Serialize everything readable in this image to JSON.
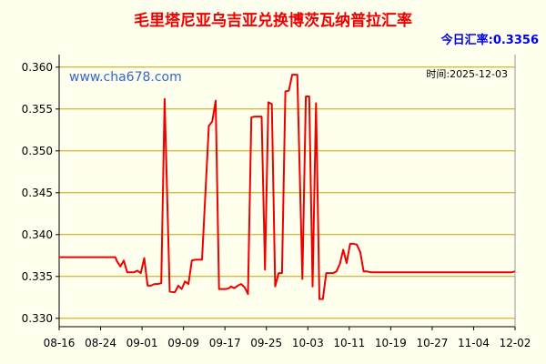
{
  "chart_data": {
    "type": "line",
    "title": "毛里塔尼亚乌吉亚兑换博茨瓦纳普拉汇率",
    "subtitle": "今日汇率:0.3356",
    "watermark": "www.cha678.com",
    "date_label": "时间:2025-12-03",
    "ylim": [
      0.329,
      0.3615
    ],
    "yticks": [
      "0.330",
      "0.335",
      "0.340",
      "0.345",
      "0.350",
      "0.355",
      "0.360"
    ],
    "xticks": [
      "08-16",
      "08-24",
      "09-01",
      "09-09",
      "09-17",
      "09-25",
      "10-03",
      "10-11",
      "10-19",
      "10-27",
      "11-04",
      "12-02"
    ],
    "series": [
      {
        "name": "",
        "color": "#EE0000",
        "x": [
          0,
          12,
          22,
          29,
          33,
          34,
          36,
          38,
          40,
          44,
          46,
          48,
          50,
          52,
          54,
          56,
          58,
          60,
          62,
          65,
          68,
          70,
          72,
          74,
          76,
          78,
          80,
          84,
          88,
          90,
          92,
          94,
          96,
          98,
          100,
          101,
          103,
          105,
          107,
          109,
          111,
          113,
          115,
          117,
          119,
          121,
          123,
          125,
          127,
          129,
          131,
          133,
          135,
          137,
          140,
          143,
          145,
          147,
          149,
          151,
          153,
          155,
          157,
          159,
          161,
          163,
          165,
          167,
          169,
          171,
          173,
          175,
          177,
          179,
          181,
          183,
          185,
          187,
          189,
          191,
          193,
          195,
          198,
          201,
          204,
          206,
          208,
          210,
          212,
          214,
          216,
          218,
          220,
          222,
          224,
          226,
          228,
          230,
          232,
          234,
          236,
          238,
          240,
          242,
          244,
          246,
          248,
          251,
          254,
          256,
          258,
          260,
          262,
          264,
          266,
          268
        ],
        "y": [
          0.3373,
          0.3373,
          0.3373,
          0.3373,
          0.3373,
          0.3368,
          0.3362,
          0.3369,
          0.3355,
          0.3355,
          0.3357,
          0.3354,
          0.3372,
          0.3339,
          0.3339,
          0.3341,
          0.3341,
          0.3342,
          0.3562,
          0.3332,
          0.3331,
          0.3339,
          0.3335,
          0.3344,
          0.3341,
          0.3369,
          0.337,
          0.337,
          0.353,
          0.3535,
          0.356,
          0.3335,
          0.3335,
          0.3335,
          0.3336,
          0.3338,
          0.3336,
          0.3339,
          0.3341,
          0.3337,
          0.3329,
          0.354,
          0.3541,
          0.3541,
          0.3541,
          0.3358,
          0.3558,
          0.3556,
          0.3338,
          0.3354,
          0.3354,
          0.3571,
          0.3572,
          0.3591,
          0.3591,
          0.3347,
          0.3565,
          0.3565,
          0.3338,
          0.3557,
          0.3323,
          0.3323,
          0.3354,
          0.3354,
          0.3354,
          0.3356,
          0.3365,
          0.3382,
          0.3366,
          0.3389,
          0.3389,
          0.3388,
          0.3379,
          0.3356,
          0.3356,
          0.3355,
          0.3355,
          0.3355,
          0.3355,
          0.3355,
          0.3355,
          0.3355,
          0.3355,
          0.3355,
          0.3355,
          0.3355,
          0.3355,
          0.3355,
          0.3355,
          0.3355,
          0.3355,
          0.3355,
          0.3355,
          0.3355,
          0.3355,
          0.3355,
          0.3355,
          0.3355,
          0.3355,
          0.3355,
          0.3355,
          0.3355,
          0.3355,
          0.3355,
          0.3355,
          0.3355,
          0.3355,
          0.3355,
          0.3355,
          0.3355,
          0.3355,
          0.3355,
          0.3355,
          0.3355,
          0.3355,
          0.3356
        ]
      }
    ],
    "grid": true,
    "colors": {
      "background": "#FFFFEE",
      "title": "#EE0000",
      "subtitle": "#0000EE",
      "watermark": "#3366CC",
      "grid": "#C8A000",
      "axis": "#000000"
    }
  }
}
